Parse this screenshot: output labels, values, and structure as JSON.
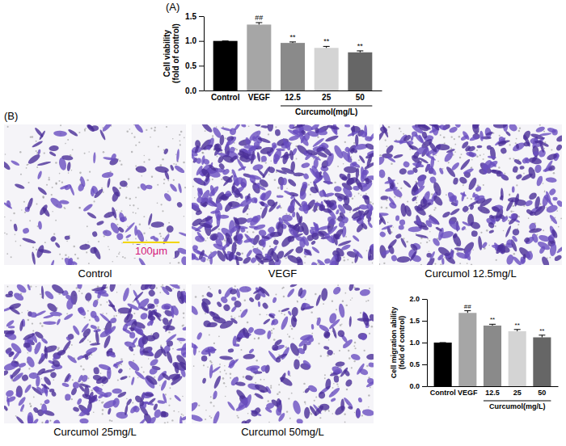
{
  "panel_labels": [
    "(A)",
    "(B)"
  ],
  "micrographs": {
    "labels": [
      "Control",
      "VEGF",
      "Curcumol 12.5mg/L",
      "Curcumol 25mg/L",
      "Curcumol 50mg/L"
    ],
    "scale_bar": "100μm"
  },
  "chart_data": [
    {
      "type": "bar",
      "ylabel": "Cell viability (fold of control)",
      "categories": [
        "Control",
        "VEGF",
        "12.5",
        "25",
        "50"
      ],
      "values": [
        1.0,
        1.33,
        0.96,
        0.86,
        0.77
      ],
      "errors": [
        0,
        0.04,
        0.02,
        0.03,
        0.03
      ],
      "significance": [
        null,
        "##",
        "**",
        "**",
        "**"
      ],
      "colors": [
        "#000000",
        "#a6a6a6",
        "#8a8a8a",
        "#d4d4d4",
        "#666666"
      ],
      "group_label": "Curcumol(mg/L)",
      "ylim": [
        0,
        1.5
      ],
      "yticks": [
        {
          "value": 0,
          "label": "0.0"
        },
        {
          "value": 0.5,
          "label": "0.5"
        },
        {
          "value": 1,
          "label": "1.0"
        },
        {
          "value": 1.5,
          "label": "1.5"
        }
      ]
    },
    {
      "type": "bar",
      "ylabel": "Cell migration ability (fold of control)",
      "categories": [
        "Control",
        "VEGF",
        "12.5",
        "25",
        "50"
      ],
      "values": [
        1.0,
        1.68,
        1.39,
        1.26,
        1.12
      ],
      "errors": [
        0,
        0.05,
        0.03,
        0.04,
        0.05
      ],
      "significance": [
        null,
        "##",
        "**",
        "**",
        "**"
      ],
      "colors": [
        "#000000",
        "#a6a6a6",
        "#8a8a8a",
        "#d4d4d4",
        "#666666"
      ],
      "group_label": "Curcumol(mg/L)",
      "ylim": [
        0,
        2
      ],
      "yticks": [
        {
          "value": 0,
          "label": "0.0"
        },
        {
          "value": 0.5,
          "label": "0.5"
        },
        {
          "value": 1,
          "label": "1.0"
        },
        {
          "value": 1.5,
          "label": "1.5"
        },
        {
          "value": 2,
          "label": "2.0"
        }
      ]
    }
  ]
}
